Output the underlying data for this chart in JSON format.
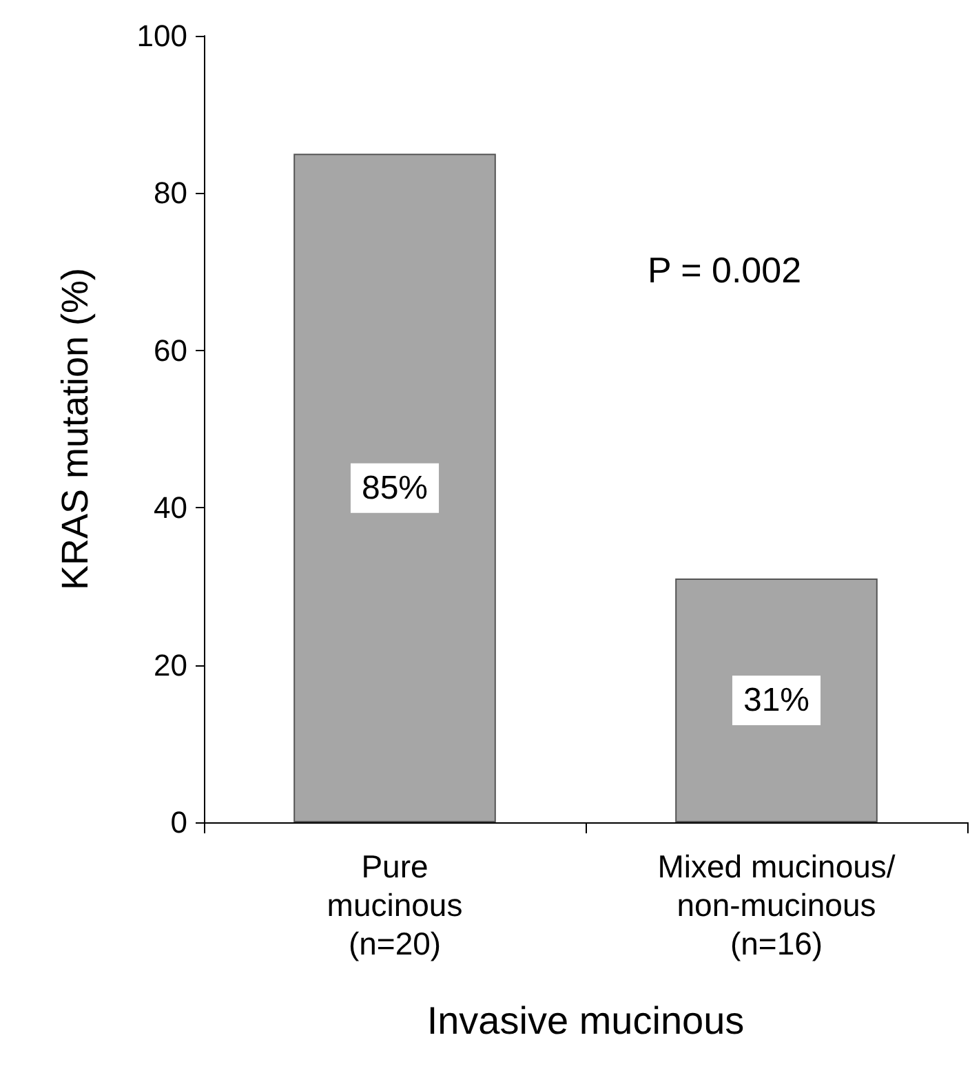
{
  "chart_data": {
    "type": "bar",
    "categories": [
      "Pure\nmucinous\n(n=20)",
      "Mixed mucinous/\nnon-mucinous\n(n=16)"
    ],
    "values": [
      85,
      31
    ],
    "color": "#a6a6a6",
    "value_labels": [
      "85%",
      "31%"
    ],
    "ylim": [
      0,
      100
    ],
    "yticks": [
      0,
      20,
      40,
      60,
      80,
      100
    ],
    "grid": false,
    "xlabel": "Invasive mucinous",
    "ylabel": "KRAS mutation (%)",
    "annotations": [
      "P = 0.002"
    ]
  }
}
